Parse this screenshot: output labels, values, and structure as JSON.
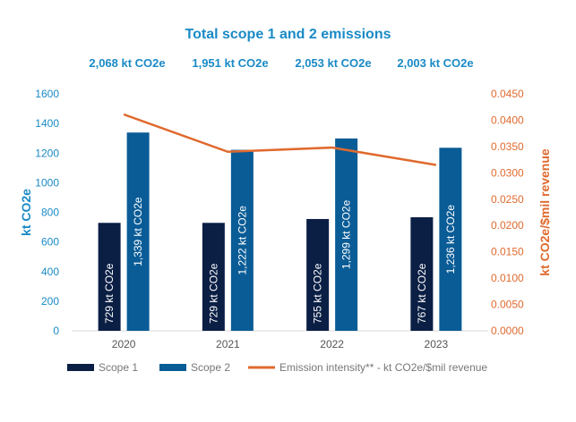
{
  "chart_data": {
    "type": "bar",
    "title": "Total scope 1 and 2 emissions",
    "totals": [
      "2,068 kt CO2e",
      "1,951 kt CO2e",
      "2,053 kt CO2e",
      "2,003 kt CO2e"
    ],
    "categories": [
      "2020",
      "2021",
      "2022",
      "2023"
    ],
    "ylabel": "kt CO2e",
    "y2label": "kt CO2e/$mil revenue",
    "ylim": [
      0,
      1600
    ],
    "y2lim": [
      0,
      0.045
    ],
    "yticks": [
      "0",
      "200",
      "400",
      "600",
      "800",
      "1000",
      "1200",
      "1400",
      "1600"
    ],
    "y2ticks": [
      "0.0000",
      "0.0050",
      "0.0100",
      "0.0150",
      "0.0200",
      "0.0250",
      "0.0300",
      "0.0350",
      "0.0400",
      "0.0450"
    ],
    "series": [
      {
        "name": "Scope 1",
        "type": "bar",
        "color": "#0b1f45",
        "values": [
          729,
          729,
          755,
          767
        ],
        "labels": [
          "729 kt CO2e",
          "729 kt CO2e",
          "755 kt CO2e",
          "767 kt CO2e"
        ]
      },
      {
        "name": "Scope 2",
        "type": "bar",
        "color": "#0a5c96",
        "values": [
          1339,
          1222,
          1299,
          1236
        ],
        "labels": [
          "1,339 kt CO2e",
          "1,222 kt CO2e",
          "1,299 kt CO2e",
          "1,236 kt CO2e"
        ]
      },
      {
        "name": "Emission intensity** - kt CO2e/$mil revenue",
        "type": "line",
        "axis": "right",
        "color": "#e06a2f",
        "values": [
          0.0411,
          0.034,
          0.0348,
          0.0315
        ]
      }
    ],
    "legend_position": "bottom",
    "grid": false
  },
  "colors": {
    "title": "#1a8ac6",
    "left_axis": "#1a8ac6",
    "right_axis": "#e06a2f",
    "category_labels": "#555555"
  }
}
